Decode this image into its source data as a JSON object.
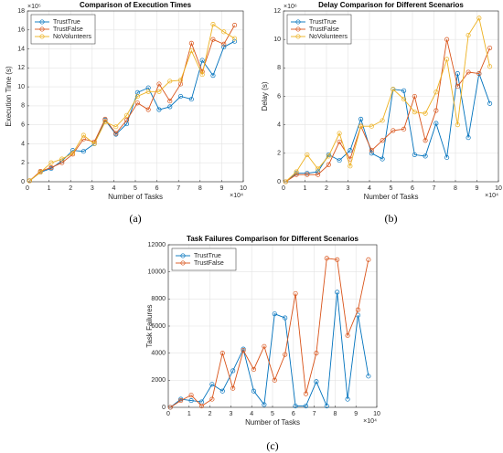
{
  "chart_data": [
    {
      "type": "line",
      "title": "Comparison of Execution Times",
      "caption": "(a)",
      "xlabel": "Number of Tasks",
      "ylabel": "Execution Time (s)",
      "x_multiplier": "×10⁴",
      "y_multiplier": "×10⁵",
      "x": [
        0.1,
        0.6,
        1.1,
        1.6,
        2.1,
        2.6,
        3.1,
        3.6,
        4.1,
        4.6,
        5.1,
        5.6,
        6.1,
        6.6,
        7.1,
        7.6,
        8.1,
        8.6,
        9.1,
        9.6
      ],
      "xlim": [
        0,
        10
      ],
      "xticks": [
        0,
        1,
        2,
        3,
        4,
        5,
        6,
        7,
        8,
        9,
        10
      ],
      "ylim": [
        0,
        18
      ],
      "yticks": [
        0,
        2,
        4,
        6,
        8,
        10,
        12,
        14,
        16,
        18
      ],
      "grid": true,
      "legend": "upper left",
      "series": [
        {
          "name": "TrustTrue",
          "color": "#0072BD",
          "values": [
            0.1,
            1.0,
            1.4,
            2.2,
            3.3,
            3.2,
            4.0,
            6.5,
            5.0,
            6.1,
            9.4,
            9.9,
            7.6,
            7.9,
            9.0,
            8.7,
            12.8,
            11.2,
            14.2,
            14.8
          ]
        },
        {
          "name": "TrustFalse",
          "color": "#D95319",
          "values": [
            0.1,
            1.1,
            1.5,
            2.0,
            2.9,
            4.5,
            4.2,
            6.6,
            5.1,
            6.5,
            8.3,
            7.6,
            10.3,
            8.5,
            10.3,
            14.6,
            11.6,
            15.0,
            14.5,
            16.5
          ]
        },
        {
          "name": "NoVolunteers",
          "color": "#EDB120",
          "values": [
            0.1,
            1.0,
            2.0,
            2.4,
            3.0,
            4.9,
            4.0,
            6.3,
            5.8,
            7.0,
            9.0,
            9.5,
            9.5,
            10.6,
            10.7,
            13.8,
            11.3,
            16.6,
            15.8,
            15.1
          ]
        }
      ]
    },
    {
      "type": "line",
      "title": "Delay Comparison for Different Scenarios",
      "caption": "(b)",
      "xlabel": "Number of Tasks",
      "ylabel": "Delay (s)",
      "x_multiplier": "×10⁴",
      "y_multiplier": "×10⁶",
      "x": [
        0.1,
        0.6,
        1.1,
        1.6,
        2.1,
        2.6,
        3.1,
        3.6,
        4.1,
        4.6,
        5.1,
        5.6,
        6.1,
        6.6,
        7.1,
        7.6,
        8.1,
        8.6,
        9.1,
        9.6
      ],
      "xlim": [
        0,
        10
      ],
      "xticks": [
        0,
        1,
        2,
        3,
        4,
        5,
        6,
        7,
        8,
        9,
        10
      ],
      "ylim": [
        0,
        12
      ],
      "yticks": [
        0,
        2,
        4,
        6,
        8,
        10,
        12
      ],
      "grid": true,
      "legend": "upper left",
      "series": [
        {
          "name": "TrustTrue",
          "color": "#0072BD",
          "values": [
            0,
            0.6,
            0.6,
            0.7,
            1.9,
            1.5,
            2.2,
            4.4,
            2.0,
            1.6,
            6.5,
            6.4,
            1.9,
            1.8,
            4.1,
            1.7,
            7.6,
            3.1,
            7.6,
            5.5
          ]
        },
        {
          "name": "TrustFalse",
          "color": "#D95319",
          "values": [
            0,
            0.5,
            0.5,
            0.5,
            1.2,
            2.8,
            1.6,
            3.9,
            2.2,
            2.9,
            3.6,
            3.7,
            6.0,
            2.9,
            5.0,
            10.0,
            6.7,
            7.7,
            7.6,
            9.4
          ]
        },
        {
          "name": "NoVolunteers",
          "color": "#EDB120",
          "values": [
            0,
            0.7,
            1.9,
            0.9,
            1.8,
            3.4,
            1.1,
            3.9,
            3.9,
            4.3,
            6.5,
            5.8,
            4.9,
            4.8,
            6.3,
            8.6,
            4.0,
            10.3,
            11.5,
            8.1
          ]
        }
      ]
    },
    {
      "type": "line",
      "title": "Task Failures Comparison for Different Scenarios",
      "caption": "(c)",
      "xlabel": "Number of Tasks",
      "ylabel": "Task Failures",
      "x_multiplier": "×10⁴",
      "x": [
        0.1,
        0.6,
        1.1,
        1.6,
        2.1,
        2.6,
        3.1,
        3.6,
        4.1,
        4.6,
        5.1,
        5.6,
        6.1,
        6.6,
        7.1,
        7.6,
        8.1,
        8.6,
        9.1,
        9.6
      ],
      "xlim": [
        0,
        10
      ],
      "xticks": [
        0,
        1,
        2,
        3,
        4,
        5,
        6,
        7,
        8,
        9,
        10
      ],
      "ylim": [
        0,
        12000
      ],
      "yticks": [
        0,
        2000,
        4000,
        6000,
        8000,
        10000,
        12000
      ],
      "grid": true,
      "legend": "upper left",
      "series": [
        {
          "name": "TrustTrue",
          "color": "#0072BD",
          "values": [
            0,
            600,
            500,
            400,
            1700,
            1200,
            2700,
            4300,
            1200,
            200,
            6900,
            6600,
            100,
            100,
            1900,
            100,
            8500,
            600,
            6800,
            2300
          ]
        },
        {
          "name": "TrustFalse",
          "color": "#D95319",
          "values": [
            0,
            500,
            900,
            100,
            600,
            4000,
            1400,
            4200,
            2800,
            4500,
            2000,
            3900,
            8400,
            1000,
            4000,
            11000,
            10900,
            5300,
            7200,
            10900
          ]
        }
      ]
    }
  ]
}
